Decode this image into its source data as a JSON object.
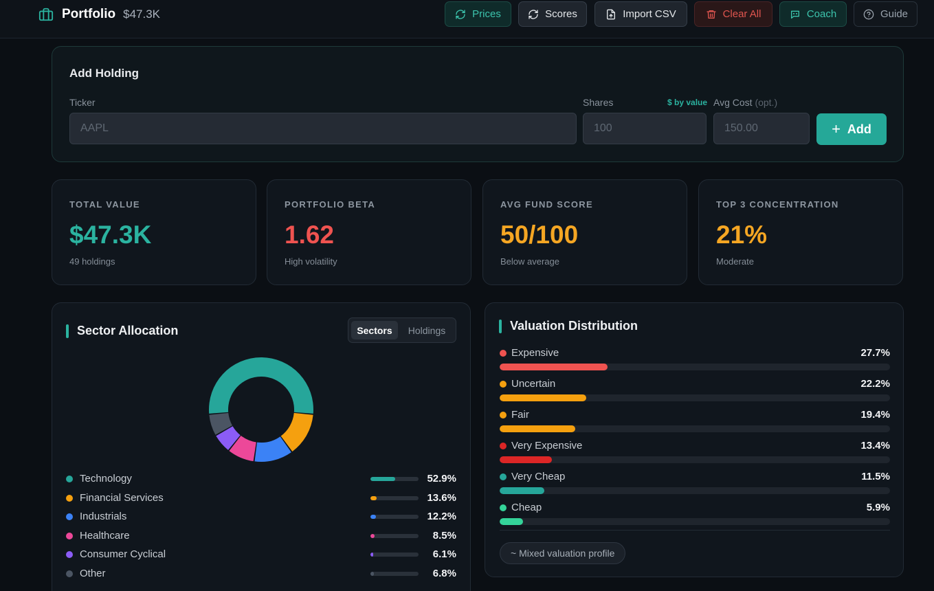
{
  "header": {
    "title": "Portfolio",
    "total": "$47.3K",
    "buttons": {
      "prices": "Prices",
      "scores": "Scores",
      "import_csv": "Import CSV",
      "clear_all": "Clear All",
      "coach": "Coach",
      "guide": "Guide"
    }
  },
  "add_holding": {
    "title": "Add Holding",
    "ticker_label": "Ticker",
    "ticker_placeholder": "AAPL",
    "shares_label": "Shares",
    "by_value": "$ by value",
    "avg_cost_label": "Avg Cost",
    "avg_cost_opt": "(opt.)",
    "shares_placeholder": "100",
    "avg_cost_placeholder": "150.00",
    "add_button": "Add"
  },
  "stats": [
    {
      "label": "TOTAL VALUE",
      "value": "$47.3K",
      "sub": "49 holdings",
      "color": "#2bb3a0"
    },
    {
      "label": "PORTFOLIO BETA",
      "value": "1.62",
      "sub": "High volatility",
      "color": "#ef5350"
    },
    {
      "label": "AVG FUND SCORE",
      "value": "50/100",
      "sub": "Below average",
      "color": "#f5a623"
    },
    {
      "label": "TOP 3 CONCENTRATION",
      "value": "21%",
      "sub": "Moderate",
      "color": "#f5a623"
    }
  ],
  "sector_allocation": {
    "title": "Sector Allocation",
    "toggle": {
      "sectors": "Sectors",
      "holdings": "Holdings",
      "active": "Sectors"
    },
    "items": [
      {
        "name": "Technology",
        "pct_label": "52.9%",
        "value": 52.9,
        "color": "#26a69a"
      },
      {
        "name": "Financial Services",
        "pct_label": "13.6%",
        "value": 13.6,
        "color": "#f5a00f"
      },
      {
        "name": "Industrials",
        "pct_label": "12.2%",
        "value": 12.2,
        "color": "#3b82f6"
      },
      {
        "name": "Healthcare",
        "pct_label": "8.5%",
        "value": 8.5,
        "color": "#ec4899"
      },
      {
        "name": "Consumer Cyclical",
        "pct_label": "6.1%",
        "value": 6.1,
        "color": "#8b5cf6"
      },
      {
        "name": "Other",
        "pct_label": "6.8%",
        "value": 6.8,
        "color": "#4b5563"
      }
    ]
  },
  "valuation_distribution": {
    "title": "Valuation Distribution",
    "items": [
      {
        "name": "Expensive",
        "pct_label": "27.7%",
        "value": 27.7,
        "color": "#ef5350"
      },
      {
        "name": "Uncertain",
        "pct_label": "22.2%",
        "value": 22.2,
        "color": "#f5a00f"
      },
      {
        "name": "Fair",
        "pct_label": "19.4%",
        "value": 19.4,
        "color": "#f5a00f"
      },
      {
        "name": "Very Expensive",
        "pct_label": "13.4%",
        "value": 13.4,
        "color": "#dc2626"
      },
      {
        "name": "Very Cheap",
        "pct_label": "11.5%",
        "value": 11.5,
        "color": "#26a69a"
      },
      {
        "name": "Cheap",
        "pct_label": "5.9%",
        "value": 5.9,
        "color": "#34d399"
      }
    ],
    "summary": "~ Mixed valuation profile"
  }
}
